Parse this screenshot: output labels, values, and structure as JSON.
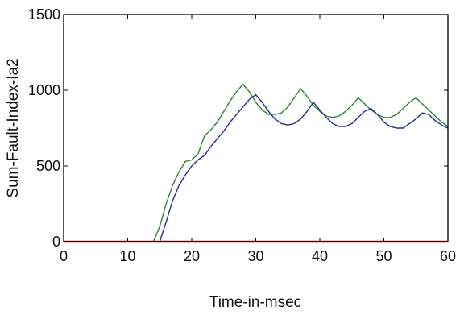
{
  "chart_data": {
    "type": "line",
    "title": "",
    "xlabel": "Time-in-msec",
    "ylabel": "Sum-Fault-Index-Ia2",
    "xlim": [
      0,
      60
    ],
    "ylim": [
      0,
      1500
    ],
    "xticks": [
      0,
      10,
      20,
      30,
      40,
      50,
      60
    ],
    "yticks": [
      0,
      500,
      1000,
      1500
    ],
    "grid": false,
    "legend": "none",
    "series": [
      {
        "color": "#2a8a2a",
        "points": [
          [
            0,
            0
          ],
          [
            14,
            0
          ],
          [
            15,
            100
          ],
          [
            16,
            250
          ],
          [
            17,
            370
          ],
          [
            18,
            460
          ],
          [
            19,
            530
          ],
          [
            20,
            540
          ],
          [
            21,
            580
          ],
          [
            22,
            700
          ],
          [
            23,
            740
          ],
          [
            24,
            790
          ],
          [
            25,
            860
          ],
          [
            26,
            930
          ],
          [
            27,
            990
          ],
          [
            28,
            1040
          ],
          [
            29,
            990
          ],
          [
            30,
            920
          ],
          [
            31,
            870
          ],
          [
            32,
            840
          ],
          [
            33,
            840
          ],
          [
            34,
            850
          ],
          [
            35,
            890
          ],
          [
            36,
            950
          ],
          [
            37,
            1010
          ],
          [
            38,
            960
          ],
          [
            39,
            900
          ],
          [
            40,
            860
          ],
          [
            41,
            830
          ],
          [
            42,
            820
          ],
          [
            43,
            830
          ],
          [
            44,
            860
          ],
          [
            45,
            900
          ],
          [
            46,
            950
          ],
          [
            47,
            910
          ],
          [
            48,
            870
          ],
          [
            49,
            840
          ],
          [
            50,
            820
          ],
          [
            51,
            820
          ],
          [
            52,
            840
          ],
          [
            53,
            880
          ],
          [
            54,
            920
          ],
          [
            55,
            950
          ],
          [
            56,
            910
          ],
          [
            57,
            870
          ],
          [
            58,
            830
          ],
          [
            59,
            790
          ],
          [
            60,
            760
          ]
        ]
      },
      {
        "color": "#1f2aa8",
        "points": [
          [
            0,
            0
          ],
          [
            15,
            0
          ],
          [
            16,
            130
          ],
          [
            17,
            270
          ],
          [
            18,
            370
          ],
          [
            19,
            440
          ],
          [
            20,
            500
          ],
          [
            21,
            540
          ],
          [
            22,
            570
          ],
          [
            23,
            630
          ],
          [
            24,
            680
          ],
          [
            25,
            730
          ],
          [
            26,
            790
          ],
          [
            27,
            840
          ],
          [
            28,
            890
          ],
          [
            29,
            940
          ],
          [
            30,
            970
          ],
          [
            31,
            920
          ],
          [
            32,
            860
          ],
          [
            33,
            810
          ],
          [
            34,
            780
          ],
          [
            35,
            770
          ],
          [
            36,
            780
          ],
          [
            37,
            810
          ],
          [
            38,
            860
          ],
          [
            39,
            920
          ],
          [
            40,
            870
          ],
          [
            41,
            820
          ],
          [
            42,
            780
          ],
          [
            43,
            760
          ],
          [
            44,
            760
          ],
          [
            45,
            780
          ],
          [
            46,
            820
          ],
          [
            47,
            860
          ],
          [
            48,
            880
          ],
          [
            49,
            840
          ],
          [
            50,
            790
          ],
          [
            51,
            760
          ],
          [
            52,
            750
          ],
          [
            53,
            750
          ],
          [
            54,
            780
          ],
          [
            55,
            810
          ],
          [
            56,
            850
          ],
          [
            57,
            840
          ],
          [
            58,
            800
          ],
          [
            59,
            770
          ],
          [
            60,
            750
          ]
        ]
      },
      {
        "color": "#b01818",
        "points": [
          [
            0,
            0
          ],
          [
            60,
            0
          ]
        ]
      }
    ]
  }
}
